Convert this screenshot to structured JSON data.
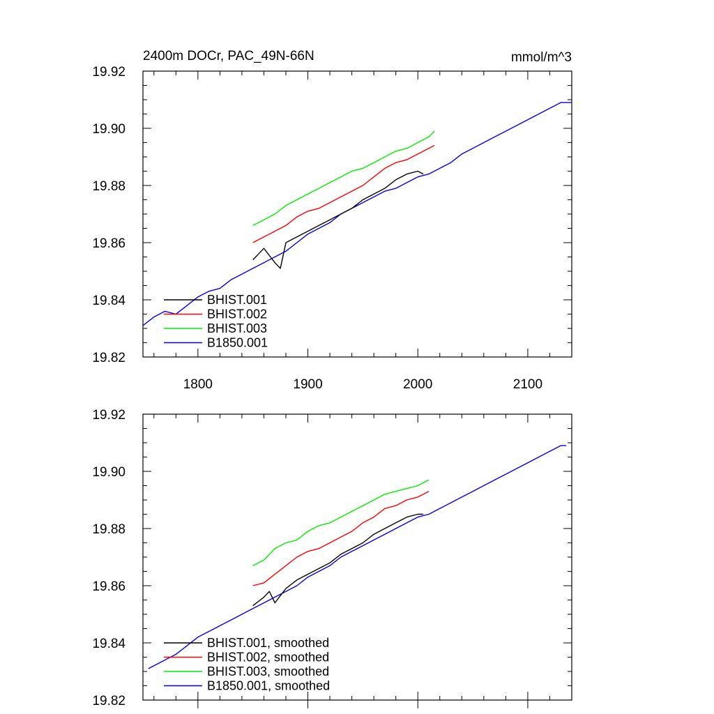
{
  "colors": {
    "BHIST.001": "#000000",
    "BHIST.002": "#ff0000",
    "BHIST.003": "#00ee00",
    "B1850.001": "#0000ee"
  },
  "chart_data": [
    {
      "type": "line",
      "title": "2400m DOCr, PAC_49N-66N",
      "units": "mmol/m^3",
      "xlim": [
        1750,
        2140
      ],
      "ylim": [
        19.82,
        19.92
      ],
      "xticks": [
        1800,
        1900,
        2000,
        2100
      ],
      "xtick_labels": [
        "1800",
        "1900",
        "2000",
        "2100"
      ],
      "yticks": [
        19.82,
        19.84,
        19.86,
        19.88,
        19.9,
        19.92
      ],
      "ytick_labels": [
        "19.82",
        "19.84",
        "19.86",
        "19.88",
        "19.90",
        "19.92"
      ],
      "legend_position": "bottom-left",
      "series": [
        {
          "name": "BHIST.001",
          "color_key": "BHIST.001",
          "x": [
            1850,
            1860,
            1870,
            1875,
            1880,
            1890,
            1900,
            1910,
            1920,
            1930,
            1940,
            1950,
            1960,
            1970,
            1980,
            1990,
            2000,
            2005
          ],
          "y": [
            19.854,
            19.858,
            19.853,
            19.851,
            19.86,
            19.862,
            19.864,
            19.866,
            19.868,
            19.87,
            19.872,
            19.875,
            19.877,
            19.879,
            19.882,
            19.884,
            19.885,
            19.884
          ]
        },
        {
          "name": "BHIST.002",
          "color_key": "BHIST.002",
          "x": [
            1850,
            1860,
            1870,
            1880,
            1890,
            1900,
            1910,
            1920,
            1930,
            1940,
            1950,
            1960,
            1970,
            1980,
            1990,
            2000,
            2010,
            2015
          ],
          "y": [
            19.86,
            19.862,
            19.864,
            19.866,
            19.869,
            19.871,
            19.872,
            19.874,
            19.876,
            19.878,
            19.88,
            19.883,
            19.886,
            19.888,
            19.889,
            19.891,
            19.893,
            19.894
          ]
        },
        {
          "name": "BHIST.003",
          "color_key": "BHIST.003",
          "x": [
            1850,
            1860,
            1870,
            1880,
            1890,
            1900,
            1910,
            1920,
            1930,
            1940,
            1950,
            1960,
            1970,
            1980,
            1990,
            2000,
            2010,
            2015
          ],
          "y": [
            19.866,
            19.868,
            19.87,
            19.873,
            19.875,
            19.877,
            19.879,
            19.881,
            19.883,
            19.885,
            19.886,
            19.888,
            19.89,
            19.892,
            19.893,
            19.895,
            19.897,
            19.899
          ]
        },
        {
          "name": "B1850.001",
          "color_key": "B1850.001",
          "x": [
            1750,
            1760,
            1770,
            1780,
            1790,
            1800,
            1810,
            1820,
            1830,
            1840,
            1850,
            1860,
            1870,
            1880,
            1890,
            1900,
            1910,
            1920,
            1930,
            1940,
            1950,
            1960,
            1970,
            1980,
            1990,
            2000,
            2010,
            2020,
            2030,
            2040,
            2050,
            2060,
            2070,
            2080,
            2090,
            2100,
            2110,
            2120,
            2130,
            2140
          ],
          "y": [
            19.831,
            19.834,
            19.836,
            19.835,
            19.838,
            19.841,
            19.843,
            19.844,
            19.847,
            19.849,
            19.851,
            19.853,
            19.855,
            19.857,
            19.86,
            19.863,
            19.865,
            19.867,
            19.87,
            19.872,
            19.874,
            19.876,
            19.878,
            19.879,
            19.881,
            19.883,
            19.884,
            19.886,
            19.888,
            19.891,
            19.893,
            19.895,
            19.897,
            19.899,
            19.901,
            19.903,
            19.905,
            19.907,
            19.909,
            19.909
          ]
        }
      ]
    },
    {
      "type": "line",
      "title": "",
      "xlim": [
        1750,
        2140
      ],
      "ylim": [
        19.82,
        19.92
      ],
      "xticks": [
        1800,
        1900,
        2000,
        2100
      ],
      "yticks": [
        19.82,
        19.84,
        19.86,
        19.88,
        19.9,
        19.92
      ],
      "ytick_labels": [
        "19.82",
        "19.84",
        "19.86",
        "19.88",
        "19.90",
        "19.92"
      ],
      "legend_position": "bottom-left",
      "series": [
        {
          "name": "BHIST.001, smoothed",
          "color_key": "BHIST.001",
          "x": [
            1850,
            1860,
            1865,
            1870,
            1880,
            1890,
            1900,
            1910,
            1920,
            1930,
            1940,
            1950,
            1960,
            1970,
            1980,
            1990,
            2000,
            2005
          ],
          "y": [
            19.853,
            19.856,
            19.858,
            19.854,
            19.859,
            19.862,
            19.864,
            19.866,
            19.868,
            19.871,
            19.873,
            19.875,
            19.878,
            19.88,
            19.882,
            19.884,
            19.885,
            19.885
          ]
        },
        {
          "name": "BHIST.002, smoothed",
          "color_key": "BHIST.002",
          "x": [
            1850,
            1860,
            1870,
            1880,
            1890,
            1900,
            1910,
            1920,
            1930,
            1940,
            1950,
            1960,
            1970,
            1980,
            1990,
            2000,
            2010
          ],
          "y": [
            19.86,
            19.861,
            19.864,
            19.867,
            19.87,
            19.872,
            19.873,
            19.875,
            19.877,
            19.879,
            19.882,
            19.884,
            19.887,
            19.888,
            19.89,
            19.891,
            19.893
          ]
        },
        {
          "name": "BHIST.003, smoothed",
          "color_key": "BHIST.003",
          "x": [
            1850,
            1860,
            1870,
            1880,
            1890,
            1900,
            1910,
            1920,
            1930,
            1940,
            1950,
            1960,
            1970,
            1980,
            1990,
            2000,
            2010
          ],
          "y": [
            19.867,
            19.869,
            19.873,
            19.875,
            19.876,
            19.879,
            19.881,
            19.882,
            19.884,
            19.886,
            19.888,
            19.89,
            19.892,
            19.893,
            19.894,
            19.895,
            19.897
          ]
        },
        {
          "name": "B1850.001, smoothed",
          "color_key": "B1850.001",
          "x": [
            1755,
            1770,
            1780,
            1790,
            1800,
            1810,
            1820,
            1830,
            1840,
            1850,
            1860,
            1870,
            1880,
            1890,
            1900,
            1910,
            1920,
            1930,
            1940,
            1950,
            1960,
            1970,
            1980,
            1990,
            2000,
            2010,
            2020,
            2030,
            2040,
            2050,
            2060,
            2070,
            2080,
            2090,
            2100,
            2110,
            2120,
            2130,
            2135
          ],
          "y": [
            19.831,
            19.834,
            19.836,
            19.839,
            19.842,
            19.844,
            19.846,
            19.848,
            19.85,
            19.852,
            19.854,
            19.856,
            19.858,
            19.86,
            19.863,
            19.865,
            19.867,
            19.87,
            19.872,
            19.874,
            19.876,
            19.878,
            19.88,
            19.882,
            19.884,
            19.885,
            19.887,
            19.889,
            19.891,
            19.893,
            19.895,
            19.897,
            19.899,
            19.901,
            19.903,
            19.905,
            19.907,
            19.909,
            19.909
          ]
        }
      ]
    }
  ]
}
